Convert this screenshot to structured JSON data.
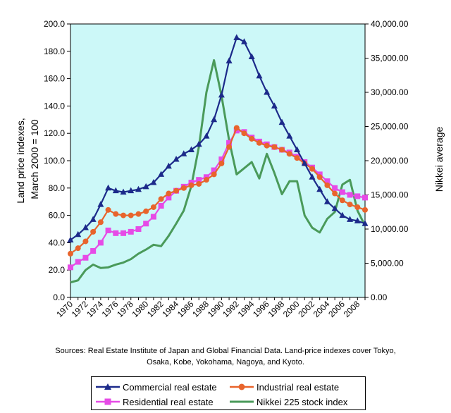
{
  "chart_data": {
    "type": "line",
    "years": [
      1970,
      1971,
      1972,
      1973,
      1974,
      1975,
      1976,
      1977,
      1978,
      1979,
      1980,
      1981,
      1982,
      1983,
      1984,
      1985,
      1986,
      1987,
      1988,
      1989,
      1990,
      1991,
      1992,
      1993,
      1994,
      1995,
      1996,
      1997,
      1998,
      1999,
      2000,
      2001,
      2002,
      2003,
      2004,
      2005,
      2006,
      2007,
      2008,
      2009
    ],
    "x_tick_labels": [
      "1970",
      "1972",
      "1974",
      "1976",
      "1978",
      "1980",
      "1982",
      "1984",
      "1986",
      "1988",
      "1990",
      "1992",
      "1994",
      "1996",
      "1998",
      "2000",
      "2002",
      "2004",
      "2006",
      "2008"
    ],
    "y_left": {
      "label_lines": [
        "Land price indexes,",
        "March 2000 = 100"
      ],
      "range": [
        0,
        200
      ],
      "tick_labels": [
        "0.0",
        "20.0",
        "40.0",
        "60.0",
        "80.0",
        "100.0",
        "120.0",
        "140.0",
        "160.0",
        "180.0",
        "200.0"
      ]
    },
    "y_right": {
      "label": "Nikkei average",
      "range": [
        0,
        40000
      ],
      "tick_labels": [
        "0.00",
        "5,000.00",
        "10,000.00",
        "15,000.00",
        "20,000.00",
        "25,000.00",
        "30,000.00",
        "35,000.00",
        "40,000.00"
      ]
    },
    "series": [
      {
        "name": "Commercial real estate",
        "axis": "left",
        "color": "#1c2a8a",
        "marker": "triangle",
        "values": [
          42,
          46,
          51,
          57,
          68,
          80,
          78,
          77,
          78,
          79,
          81,
          84,
          90,
          96,
          101,
          105,
          108,
          112,
          118,
          130,
          148,
          173,
          190,
          187,
          176,
          162,
          150,
          140,
          128,
          118,
          108,
          98,
          88,
          79,
          70,
          65,
          60,
          57,
          56,
          54
        ]
      },
      {
        "name": "Industrial real estate",
        "axis": "left",
        "color": "#e8642c",
        "marker": "circle",
        "values": [
          32,
          36,
          41,
          48,
          55,
          64,
          61,
          60,
          60,
          61,
          63,
          66,
          72,
          76,
          78,
          80,
          82,
          83,
          86,
          90,
          98,
          110,
          124,
          120,
          116,
          113,
          111,
          110,
          108,
          105,
          102,
          98,
          94,
          88,
          82,
          76,
          71,
          68,
          66,
          64
        ]
      },
      {
        "name": "Residential real estate",
        "axis": "left",
        "color": "#e64be6",
        "marker": "square",
        "values": [
          22,
          26,
          29,
          34,
          40,
          49,
          47,
          47,
          48,
          50,
          54,
          59,
          67,
          73,
          78,
          81,
          84,
          86,
          88,
          93,
          101,
          113,
          122,
          121,
          117,
          114,
          112,
          110,
          108,
          106,
          103,
          99,
          95,
          90,
          85,
          80,
          77,
          75,
          74,
          73
        ]
      },
      {
        "name": "Nikkei 225 stock index",
        "axis": "right",
        "color": "#4a9a5a",
        "marker": "none",
        "values": [
          2200,
          2500,
          4000,
          4800,
          4300,
          4400,
          4800,
          5100,
          5600,
          6400,
          7000,
          7700,
          7500,
          9000,
          10800,
          12700,
          16300,
          22000,
          30000,
          34700,
          29500,
          23000,
          18000,
          18900,
          19800,
          17400,
          21000,
          18200,
          15100,
          17000,
          17000,
          12000,
          10200,
          9500,
          11500,
          12500,
          16500,
          17200,
          12700,
          10500
        ]
      }
    ]
  },
  "source_lines": [
    "Sources: Real Estate Institute of Japan and Global Financial Data. Land-price indexes cover Tokyo,",
    "Osaka, Kobe, Yokohama, Nagoya, and Kyoto."
  ],
  "legend": [
    {
      "label": "Commercial real estate"
    },
    {
      "label": "Industrial real estate"
    },
    {
      "label": "Residential real estate"
    },
    {
      "label": "Nikkei 225 stock index"
    }
  ],
  "colors": {
    "plot_bg": "#ccf8f8",
    "axis": "#000000"
  }
}
